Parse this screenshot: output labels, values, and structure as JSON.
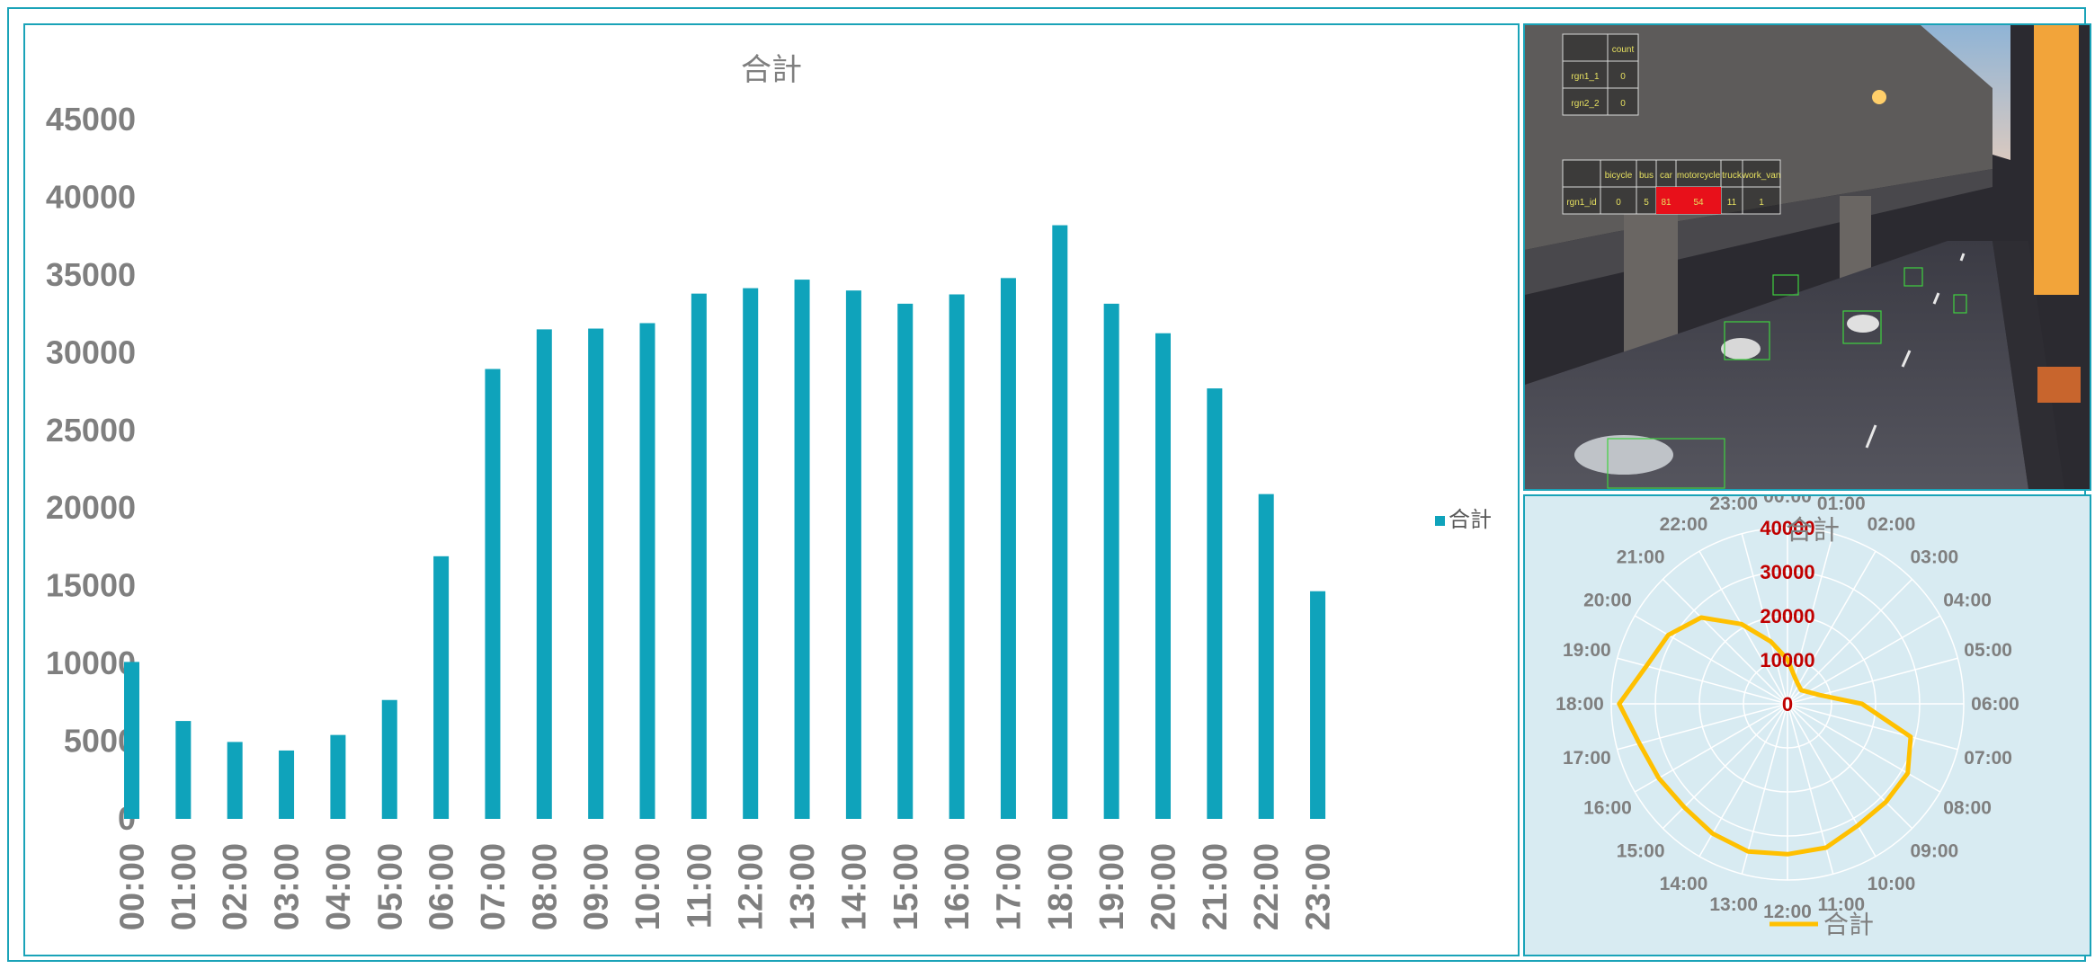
{
  "colors": {
    "bar": "#0fa3bb",
    "radar": "#ffc000",
    "frame": "#1aa3b8",
    "radar_bg": "#d8ebf2"
  },
  "chart_data": [
    {
      "type": "bar",
      "title": "合計",
      "legend": {
        "label": "合計",
        "position": "right"
      },
      "categories": [
        "00:00",
        "01:00",
        "02:00",
        "03:00",
        "04:00",
        "05:00",
        "06:00",
        "07:00",
        "08:00",
        "09:00",
        "10:00",
        "11:00",
        "12:00",
        "13:00",
        "14:00",
        "15:00",
        "16:00",
        "17:00",
        "18:00",
        "19:00",
        "20:00",
        "21:00",
        "22:00",
        "23:00"
      ],
      "series": [
        {
          "name": "合計",
          "values": [
            10100,
            6300,
            4950,
            4400,
            5400,
            7650,
            16900,
            28950,
            31500,
            31550,
            31900,
            33800,
            34150,
            34700,
            34000,
            33150,
            33750,
            34800,
            38200,
            33150,
            31250,
            27700,
            20900,
            14650
          ]
        }
      ],
      "yticks": [
        0,
        5000,
        10000,
        15000,
        20000,
        25000,
        30000,
        35000,
        40000,
        45000
      ],
      "ylim": [
        0,
        45000
      ],
      "grid": false
    },
    {
      "type": "radar",
      "title": "合計",
      "legend": {
        "label": "合計",
        "position": "bottom"
      },
      "categories": [
        "00:00",
        "01:00",
        "02:00",
        "03:00",
        "04:00",
        "05:00",
        "06:00",
        "07:00",
        "08:00",
        "09:00",
        "10:00",
        "11:00",
        "12:00",
        "13:00",
        "14:00",
        "15:00",
        "16:00",
        "17:00",
        "18:00",
        "19:00",
        "20:00",
        "21:00",
        "22:00",
        "23:00"
      ],
      "series": [
        {
          "name": "合計",
          "values": [
            10100,
            6300,
            4950,
            4400,
            5400,
            7650,
            16900,
            28950,
            31500,
            31550,
            31900,
            33800,
            34150,
            34700,
            34000,
            33150,
            33750,
            34800,
            38200,
            33150,
            31250,
            27700,
            20900,
            14650
          ]
        }
      ],
      "rticks": [
        0,
        10000,
        20000,
        30000,
        40000
      ],
      "rlim": [
        0,
        40000
      ],
      "grid": true
    }
  ],
  "video_overlay": {
    "table1": {
      "header": "count",
      "rows": [
        {
          "name": "rgn1_1",
          "value": "0"
        },
        {
          "name": "rgn2_2",
          "value": "0"
        }
      ]
    },
    "table2": {
      "headers": [
        "bicycle",
        "bus",
        "car",
        "motorcycle",
        "truck",
        "work_van"
      ],
      "row": {
        "name": "rgn1_id",
        "values": [
          "0",
          "5",
          "81",
          "54",
          "11",
          "1"
        ]
      }
    }
  }
}
